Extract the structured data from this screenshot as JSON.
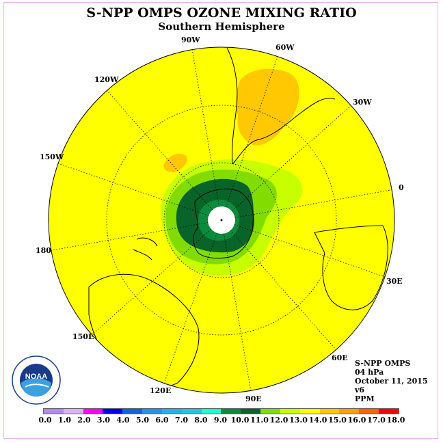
{
  "title": "S-NPP OMPS OZONE MIXING RATIO",
  "subtitle": "Southern Hemisphere",
  "longitude_labels": [
    "90W",
    "60W",
    "30W",
    "0",
    "30E",
    "60E",
    "90E",
    "120E",
    "150E",
    "180",
    "150W",
    "120W"
  ],
  "info": {
    "instrument": "S-NPP OMPS",
    "level": "04 hPa",
    "date": "October 11, 2015",
    "version": "v6",
    "units": "PPM"
  },
  "logo_text": "NOAA",
  "colorbar": {
    "ticks": [
      "0.0",
      "1.0",
      "2.0",
      "3.0",
      "4.0",
      "5.0",
      "6.0",
      "7.0",
      "8.0",
      "9.0",
      "10.0",
      "11.0",
      "12.0",
      "13.0",
      "14.0",
      "15.0",
      "16.0",
      "17.0",
      "18.0"
    ],
    "colors": [
      "#b48ce6",
      "#d7b4f0",
      "#ff00ff",
      "#0000ee",
      "#0a64e6",
      "#1e96f0",
      "#1eb4f0",
      "#1ec8dc",
      "#1effd2",
      "#0a8c3c",
      "#086428",
      "#82dc00",
      "#c8ff00",
      "#ffff00",
      "#ffc800",
      "#ffa000",
      "#ff6400",
      "#ff0000",
      "#8c5a3c"
    ]
  },
  "map_colors": {
    "background": "#ffff00",
    "orange": "#ffc800",
    "light_green": "#c8ff00",
    "green": "#82dc00",
    "mid_green": "#0a8c3c",
    "dark_green": "#086428",
    "pole_fill": "#ffffff"
  }
}
